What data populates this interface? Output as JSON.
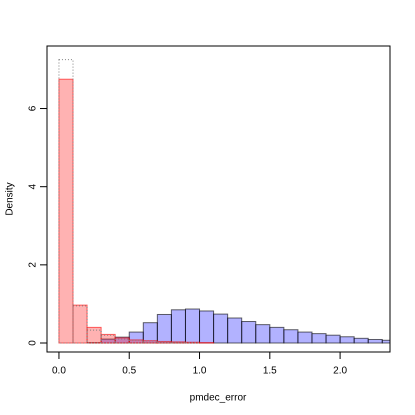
{
  "chart_data": {
    "type": "histogram",
    "xlabel": "pmdec_error",
    "ylabel": "Density",
    "bins": [
      0,
      0.1,
      0.2,
      0.3,
      0.4,
      0.5,
      0.6,
      0.7,
      0.8,
      0.9,
      1.0,
      1.1,
      1.2,
      1.3,
      1.4,
      1.5,
      1.6,
      1.7,
      1.8,
      1.9,
      2.0,
      2.1,
      2.2,
      2.3,
      2.4
    ],
    "series": [
      {
        "color": "#0000ff",
        "values": [
          0,
          0,
          0.01,
          0.1,
          0.15,
          0.28,
          0.52,
          0.73,
          0.85,
          0.87,
          0.82,
          0.74,
          0.64,
          0.55,
          0.47,
          0.4,
          0.34,
          0.28,
          0.24,
          0.2,
          0.16,
          0.12,
          0.09,
          0.07
        ]
      },
      {
        "color": "#ff0000",
        "values": [
          6.75,
          0.97,
          0.4,
          0.22,
          0.13,
          0.08,
          0.06,
          0.04,
          0.03,
          0.02,
          0.01,
          0,
          0,
          0,
          0,
          0,
          0,
          0,
          0,
          0,
          0,
          0,
          0,
          0
        ]
      },
      {
        "color": "#808080",
        "linestyle": "dotted",
        "values": [
          7.25,
          0.95,
          0.33,
          0.2,
          0.1,
          0.07,
          0.05,
          0.03,
          0.02,
          0.01,
          0,
          0,
          0,
          0,
          0,
          0,
          0,
          0,
          0,
          0,
          0,
          0,
          0,
          0
        ]
      }
    ],
    "xlim": [
      -0.085,
      2.355
    ],
    "ylim": [
      -0.23,
      7.6
    ],
    "xticks": [
      {
        "value": 0,
        "label": "0.0"
      },
      0.5,
      {
        "value": 1,
        "label": "1.0"
      },
      1.5,
      {
        "value": 2,
        "label": "2.0"
      }
    ],
    "yticks": [
      0,
      2,
      4,
      6
    ]
  }
}
